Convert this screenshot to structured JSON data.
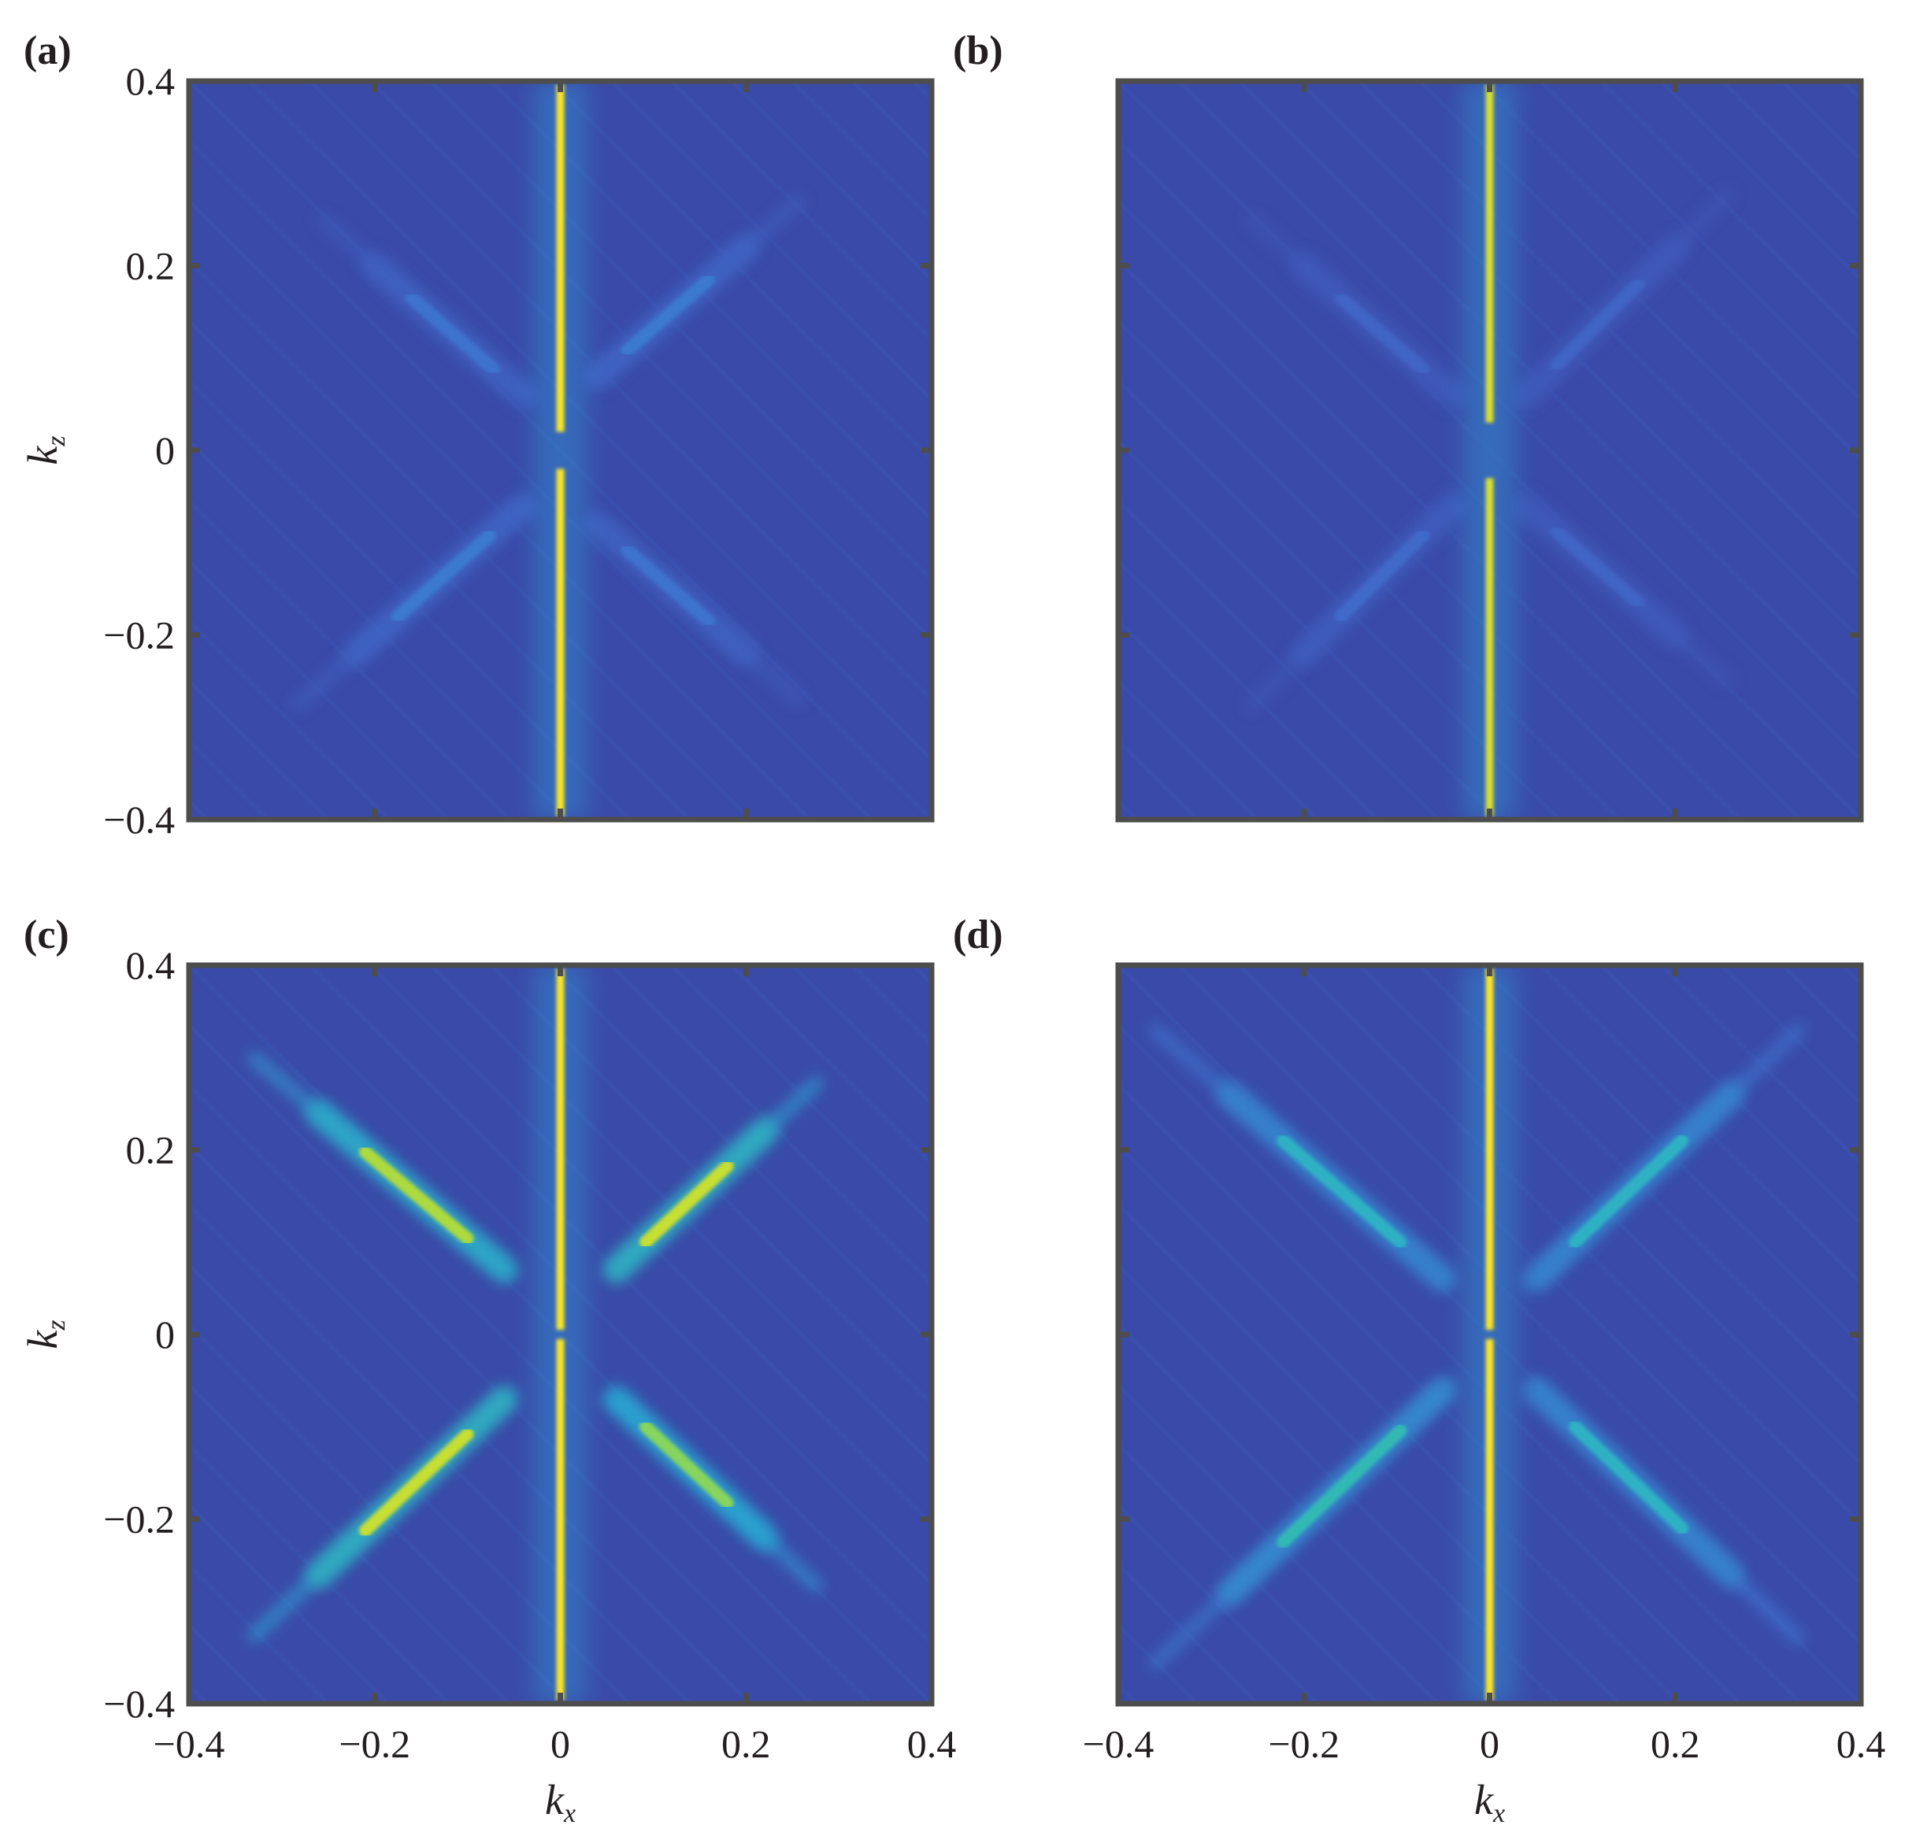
{
  "chart_data": [
    {
      "type": "heatmap",
      "panel": "(a)",
      "xlabel": "",
      "ylabel": "k",
      "ylabel_sub": "z",
      "xlim": [
        -0.4,
        0.4
      ],
      "ylim": [
        -0.4,
        0.4
      ],
      "x_ticks": [
        -0.4,
        -0.2,
        0,
        0.2,
        0.4
      ],
      "y_ticks": [
        0.4,
        0.2,
        0,
        -0.2,
        -0.4
      ],
      "x_tick_labels": [],
      "y_tick_labels": [
        "0.4",
        "0.2",
        "0",
        "−0.2",
        "−0.4"
      ],
      "colors": {
        "background": "#3a4aa8",
        "low": "#3f68c8",
        "mid": "#2fb5d0",
        "high": "#f5e52a"
      },
      "features": {
        "central_line": {
          "x": 0,
          "peak_intensity": 1.0,
          "gap_y": [
            -0.02,
            0.02
          ]
        },
        "diagonal_lobes": [
          {
            "quadrant": "upper-right",
            "from": [
              0.04,
              0.08
            ],
            "to": [
              0.2,
              0.22
            ],
            "intensity": 0.25
          },
          {
            "quadrant": "upper-left",
            "from": [
              -0.04,
              0.06
            ],
            "to": [
              -0.2,
              0.2
            ],
            "intensity": 0.22
          },
          {
            "quadrant": "lower-left",
            "from": [
              -0.04,
              -0.06
            ],
            "to": [
              -0.22,
              -0.22
            ],
            "intensity": 0.25
          },
          {
            "quadrant": "lower-right",
            "from": [
              0.04,
              -0.08
            ],
            "to": [
              0.2,
              -0.22
            ],
            "intensity": 0.22
          }
        ]
      }
    },
    {
      "type": "heatmap",
      "panel": "(b)",
      "xlabel": "",
      "ylabel": "",
      "xlim": [
        -0.4,
        0.4
      ],
      "ylim": [
        -0.4,
        0.4
      ],
      "x_ticks": [
        -0.4,
        -0.2,
        0,
        0.2,
        0.4
      ],
      "y_ticks": [
        0.4,
        0.2,
        0,
        -0.2,
        -0.4
      ],
      "x_tick_labels": [],
      "y_tick_labels": [],
      "colors": {
        "background": "#3a4aa8",
        "low": "#3f68c8",
        "mid": "#2fb5d0",
        "high": "#f5e52a"
      },
      "features": {
        "central_line": {
          "x": 0,
          "peak_intensity": 0.9,
          "gap_y": [
            -0.03,
            0.03
          ]
        },
        "diagonal_lobes": [
          {
            "quadrant": "upper-right",
            "from": [
              0.04,
              0.06
            ],
            "to": [
              0.2,
              0.22
            ],
            "intensity": 0.15
          },
          {
            "quadrant": "upper-left",
            "from": [
              -0.04,
              0.06
            ],
            "to": [
              -0.2,
              0.2
            ],
            "intensity": 0.15
          },
          {
            "quadrant": "lower-left",
            "from": [
              -0.04,
              -0.06
            ],
            "to": [
              -0.2,
              -0.22
            ],
            "intensity": 0.18
          },
          {
            "quadrant": "lower-right",
            "from": [
              0.04,
              -0.06
            ],
            "to": [
              0.2,
              -0.2
            ],
            "intensity": 0.15
          }
        ]
      }
    },
    {
      "type": "heatmap",
      "panel": "(c)",
      "xlabel": "k",
      "xlabel_sub": "x",
      "ylabel": "k",
      "ylabel_sub": "z",
      "xlim": [
        -0.4,
        0.4
      ],
      "ylim": [
        -0.4,
        0.4
      ],
      "x_ticks": [
        -0.4,
        -0.2,
        0,
        0.2,
        0.4
      ],
      "y_ticks": [
        0.4,
        0.2,
        0,
        -0.2,
        -0.4
      ],
      "x_tick_labels": [
        "−0.4",
        "−0.2",
        "0",
        "0.2",
        "0.4"
      ],
      "y_tick_labels": [
        "0.4",
        "0.2",
        "0",
        "−0.2",
        "−0.4"
      ],
      "colors": {
        "background": "#3a4aa8",
        "low": "#3f68c8",
        "mid": "#2fb5d0",
        "high": "#f5e52a"
      },
      "features": {
        "central_line": {
          "x": 0,
          "peak_intensity": 1.0,
          "gap_y": [
            -0.005,
            0.005
          ]
        },
        "diagonal_lobes": [
          {
            "quadrant": "upper-right",
            "from": [
              0.06,
              0.07
            ],
            "to": [
              0.22,
              0.22
            ],
            "intensity": 0.85
          },
          {
            "quadrant": "upper-left",
            "from": [
              -0.06,
              0.07
            ],
            "to": [
              -0.26,
              0.24
            ],
            "intensity": 0.8
          },
          {
            "quadrant": "lower-left",
            "from": [
              -0.06,
              -0.07
            ],
            "to": [
              -0.26,
              -0.26
            ],
            "intensity": 0.85
          },
          {
            "quadrant": "lower-right",
            "from": [
              0.06,
              -0.07
            ],
            "to": [
              0.22,
              -0.22
            ],
            "intensity": 0.75
          }
        ]
      }
    },
    {
      "type": "heatmap",
      "panel": "(d)",
      "xlabel": "k",
      "xlabel_sub": "x",
      "ylabel": "",
      "xlim": [
        -0.4,
        0.4
      ],
      "ylim": [
        -0.4,
        0.4
      ],
      "x_ticks": [
        -0.4,
        -0.2,
        0,
        0.2,
        0.4
      ],
      "y_ticks": [
        0.4,
        0.2,
        0,
        -0.2,
        -0.4
      ],
      "x_tick_labels": [
        "−0.4",
        "−0.2",
        "0",
        "0.2",
        "0.4"
      ],
      "y_tick_labels": [],
      "colors": {
        "background": "#3a4aa8",
        "low": "#3f68c8",
        "mid": "#2fb5d0",
        "high": "#f5e52a"
      },
      "features": {
        "central_line": {
          "x": 0,
          "peak_intensity": 1.0,
          "gap_y": [
            -0.005,
            0.005
          ]
        },
        "diagonal_lobes": [
          {
            "quadrant": "upper-right",
            "from": [
              0.05,
              0.06
            ],
            "to": [
              0.26,
              0.26
            ],
            "intensity": 0.5
          },
          {
            "quadrant": "upper-left",
            "from": [
              -0.05,
              0.06
            ],
            "to": [
              -0.28,
              0.26
            ],
            "intensity": 0.5
          },
          {
            "quadrant": "lower-left",
            "from": [
              -0.05,
              -0.06
            ],
            "to": [
              -0.28,
              -0.28
            ],
            "intensity": 0.55
          },
          {
            "quadrant": "lower-right",
            "from": [
              0.05,
              -0.06
            ],
            "to": [
              0.26,
              -0.26
            ],
            "intensity": 0.5
          }
        ]
      }
    }
  ]
}
